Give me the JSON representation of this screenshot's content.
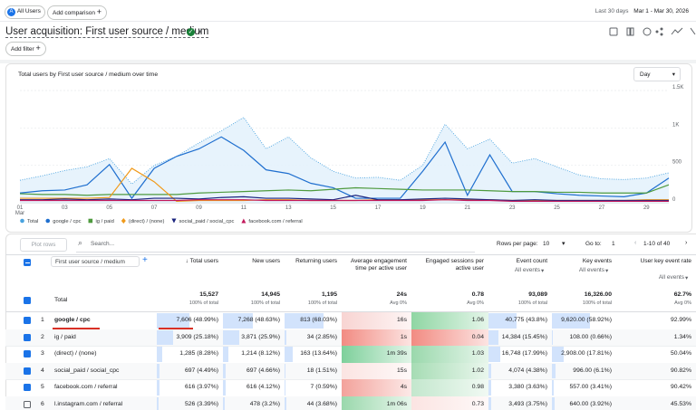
{
  "topbar": {
    "segment_badge": "A",
    "segment": "All Users",
    "add_comparison": "Add comparison",
    "date_range_label": "Last 30 days",
    "date_range": "Mar 1 - Mar 30, 2026"
  },
  "header": {
    "title": "User acquisition: First user source / medium",
    "add_filter": "Add filter"
  },
  "chart_data": {
    "type": "line",
    "title": "Total users by First user source / medium over time",
    "period": "Day",
    "categories": [
      "01",
      null,
      "03",
      null,
      "05",
      null,
      "07",
      null,
      "09",
      null,
      "11",
      null,
      "13",
      null,
      "15",
      null,
      "17",
      null,
      "19",
      null,
      "21",
      null,
      "23",
      null,
      "25",
      null,
      "27",
      null,
      "29",
      null
    ],
    "x_month": "Mar",
    "ylim": [
      0,
      1500
    ],
    "yticks": [
      0,
      500,
      {
        "value": 1000,
        "label": "1K"
      },
      {
        "value": 1500,
        "label": "1.5K"
      }
    ],
    "grid": true,
    "series": [
      {
        "name": "Total",
        "color": "#4aa3df",
        "values": [
          300,
          360,
          430,
          480,
          590,
          250,
          500,
          620,
          800,
          960,
          1140,
          720,
          880,
          600,
          420,
          330,
          340,
          300,
          500,
          1050,
          720,
          850,
          530,
          590,
          480,
          370,
          320,
          310,
          330,
          400
        ]
      },
      {
        "name": "google / cpc",
        "color": "#1f6fcf",
        "values": [
          130,
          160,
          170,
          240,
          510,
          60,
          460,
          620,
          720,
          880,
          700,
          440,
          390,
          260,
          200,
          60,
          60,
          60,
          420,
          810,
          100,
          640,
          150,
          150,
          120,
          100,
          90,
          80,
          130,
          330
        ]
      },
      {
        "name": "ig / paid",
        "color": "#4e9a3e",
        "values": [
          120,
          110,
          110,
          100,
          110,
          110,
          110,
          110,
          130,
          140,
          150,
          160,
          170,
          160,
          180,
          200,
          190,
          180,
          170,
          170,
          170,
          160,
          150,
          150,
          140,
          140,
          130,
          130,
          130,
          240
        ]
      },
      {
        "name": "(direct) / (none)",
        "color": "#f09a1a",
        "values": [
          60,
          60,
          60,
          60,
          70,
          460,
          280,
          20,
          30,
          30,
          30,
          40,
          40,
          30,
          30,
          30,
          40,
          40,
          40,
          40,
          40,
          40,
          30,
          30,
          30,
          30,
          30,
          30,
          40,
          40
        ]
      },
      {
        "name": "social_paid / social_cpc",
        "color": "#1a237e",
        "values": [
          40,
          40,
          50,
          40,
          50,
          40,
          60,
          60,
          50,
          70,
          80,
          60,
          60,
          50,
          40,
          100,
          40,
          40,
          50,
          60,
          50,
          40,
          30,
          40,
          30,
          30,
          30,
          30,
          30,
          30
        ]
      },
      {
        "name": "facebook.com / referral",
        "color": "#c2185b",
        "values": [
          30,
          30,
          30,
          30,
          30,
          30,
          30,
          30,
          40,
          40,
          40,
          30,
          30,
          30,
          30,
          30,
          30,
          30,
          30,
          40,
          30,
          30,
          20,
          20,
          20,
          20,
          20,
          20,
          20,
          20
        ]
      }
    ]
  },
  "table": {
    "toolbar": {
      "plot_rows": "Plot rows",
      "search": "Search...",
      "rows_per_page_label": "Rows per page:",
      "rows_per_page": "10",
      "goto_label": "Go to:",
      "goto": "1",
      "pagination": "1-10 of 40"
    },
    "dimension": "First user source / medium",
    "columns": [
      {
        "label": "Total users"
      },
      {
        "label": "New users"
      },
      {
        "label": "Returning users"
      },
      {
        "label": "Average engagement time per active user"
      },
      {
        "label": "Engaged sessions per active user"
      },
      {
        "label": "Event count",
        "filter": "All events"
      },
      {
        "label": "Key events",
        "filter": "All events"
      },
      {
        "label": "User key event rate",
        "filter": "All events"
      }
    ],
    "totals": {
      "label": "Total",
      "cells": [
        [
          "15,527",
          "100% of total"
        ],
        [
          "14,945",
          "100% of total"
        ],
        [
          "1,195",
          "100% of total"
        ],
        [
          "24s",
          "Avg 0%"
        ],
        [
          "0.78",
          "Avg 0%"
        ],
        [
          "93,089",
          "100% of total"
        ],
        [
          "16,326.00",
          "100% of total"
        ],
        [
          "62.7%",
          "Avg 0%"
        ]
      ]
    },
    "rows": [
      [
        "1",
        "google / cpc",
        "7,606 (48.99%)",
        "7,268 (48.63%)",
        "813 (68.03%)",
        "16s",
        "1.06",
        "40,775 (43.8%)",
        "9,620.00 (58.92%)",
        "92.99%"
      ],
      [
        "2",
        "ig / paid",
        "3,909 (25.18%)",
        "3,871 (25.9%)",
        "34 (2.85%)",
        "1s",
        "0.04",
        "14,384 (15.45%)",
        "108.00 (0.66%)",
        "1.34%"
      ],
      [
        "3",
        "(direct) / (none)",
        "1,285 (8.28%)",
        "1,214 (8.12%)",
        "163 (13.64%)",
        "1m 39s",
        "1.03",
        "16,748 (17.99%)",
        "2,908.00 (17.81%)",
        "50.04%"
      ],
      [
        "4",
        "social_paid / social_cpc",
        "697 (4.49%)",
        "697 (4.66%)",
        "18 (1.51%)",
        "15s",
        "1.02",
        "4,074 (4.38%)",
        "996.00 (6.1%)",
        "90.82%"
      ],
      [
        "5",
        "facebook.com / referral",
        "616 (3.97%)",
        "616 (4.12%)",
        "7 (0.59%)",
        "4s",
        "0.98",
        "3,380 (3.63%)",
        "557.00 (3.41%)",
        "90.42%"
      ],
      [
        "6",
        "l.instagram.com / referral",
        "526 (3.39%)",
        "478 (3.2%)",
        "44 (3.68%)",
        "1m 06s",
        "0.73",
        "3,493 (3.75%)",
        "640.00 (3.92%)",
        "45.53%"
      ]
    ]
  }
}
